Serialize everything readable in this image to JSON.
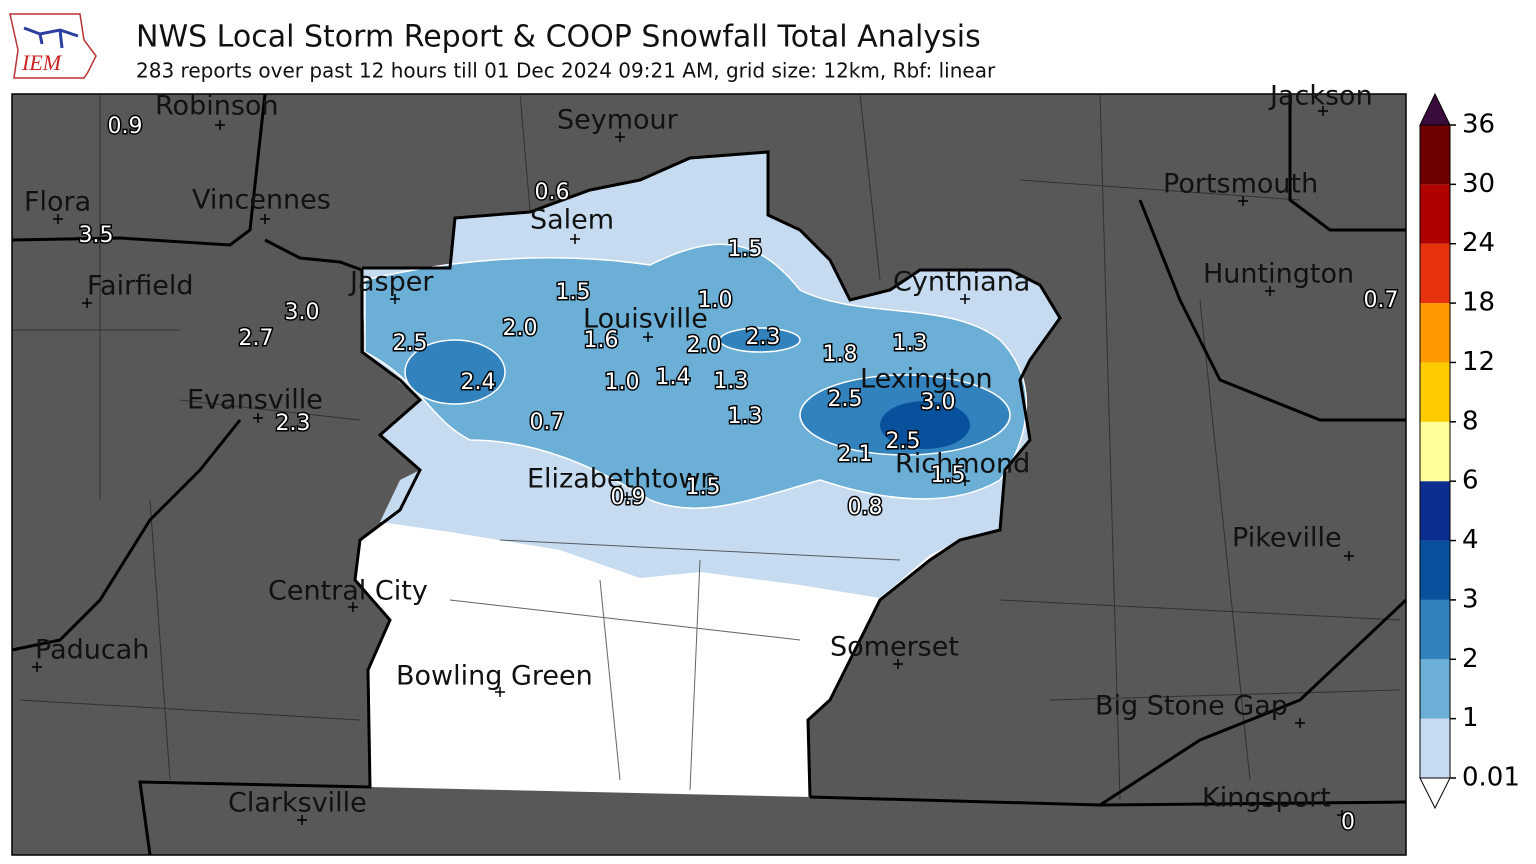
{
  "header": {
    "logo": "IEM",
    "title": "NWS Local Storm Report & COOP Snowfall Total Analysis",
    "subtitle": "283 reports over past 12 hours till 01 Dec 2024 09:21 AM, grid size: 12km, Rbf: linear"
  },
  "cities": [
    "Robinson",
    "Seymour",
    "Flora",
    "Vincennes",
    "Salem",
    "Jasper",
    "Fairfield",
    "Louisville",
    "Cynthiana",
    "Portsmouth",
    "Huntington",
    "Jackson",
    "Lexington",
    "Evansville",
    "Elizabethtown",
    "Richmond",
    "Pikeville",
    "Central City",
    "Paducah",
    "Somerset",
    "Bowling Green",
    "Big Stone Gap",
    "Clarksville",
    "Kingsport"
  ],
  "reports": [
    "0.9",
    "0.6",
    "3.5",
    "1.5",
    "1.5",
    "1.0",
    "3.0",
    "0.7",
    "2.7",
    "2.5",
    "2.0",
    "1.6",
    "2.0",
    "2.3",
    "1.8",
    "1.3",
    "2.4",
    "1.0",
    "1.4",
    "1.3",
    "2.5",
    "3.0",
    "0.7",
    "1.3",
    "2.3",
    "2.5",
    "2.1",
    "1.5",
    "0.9",
    "1.5",
    "0.8",
    "0"
  ],
  "legend": {
    "ticks": [
      0.01,
      1,
      2,
      3,
      4,
      6,
      8,
      12,
      18,
      24,
      30,
      36
    ],
    "colors": [
      "#c6dbef",
      "#6baed6",
      "#3182bd",
      "#08519c",
      "#0c2e91",
      "#ffff99",
      "#ffcc00",
      "#ff9900",
      "#e8320e",
      "#b00000",
      "#700000"
    ],
    "over_color": "#3b0b3b",
    "under_color": "#ffffff"
  }
}
